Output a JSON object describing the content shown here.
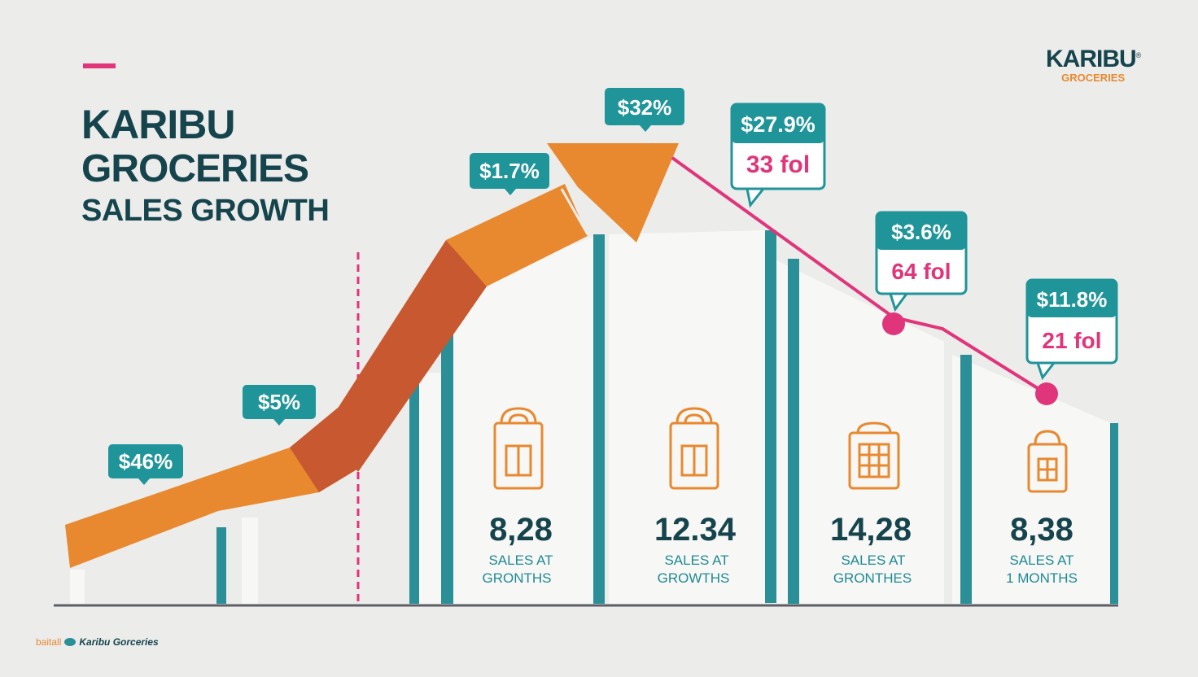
{
  "header": {
    "title_line1": "KARIBU",
    "title_line2": "GROCERIES",
    "title_line3": "SALES GROWTH"
  },
  "logo": {
    "line1": "KARIBU",
    "mark": "®",
    "line2": "GROCERIES"
  },
  "footer": {
    "left_text": "baitall",
    "brand_text": "Karibu Gorceries"
  },
  "colors": {
    "teal": "#1f9499",
    "dark_teal": "#15444d",
    "orange": "#e8892f",
    "rust": "#c8582f",
    "pink": "#e0357a",
    "background": "#ececeb"
  },
  "chart_data": {
    "type": "infographic",
    "title": "KARIBU GROCERIES SALES GROWTH",
    "callouts": [
      {
        "label": "$46%"
      },
      {
        "label": "$5%"
      },
      {
        "label": "$1.7%"
      },
      {
        "label": "$32%"
      },
      {
        "label": "$27.9%",
        "sublabel": "33 fol"
      },
      {
        "label": "$3.6%",
        "sublabel": "64 fol"
      },
      {
        "label": "$11.8%",
        "sublabel": "21 fol"
      }
    ],
    "stats": [
      {
        "value": "8,28",
        "line1": "SALES AT",
        "line2": "GRONTHS",
        "icon": "shopping-bag-icon"
      },
      {
        "value": "12.34",
        "line1": "SALES AT",
        "line2": "GROWTHS",
        "icon": "shopping-bag-icon"
      },
      {
        "value": "14,28",
        "line1": "SALES AT",
        "line2": "GRONTHES",
        "icon": "store-grid-icon"
      },
      {
        "value": "8,38",
        "line1": "SALES AT",
        "line2": "1 MONTHS",
        "icon": "shopping-bag-icon"
      }
    ]
  }
}
